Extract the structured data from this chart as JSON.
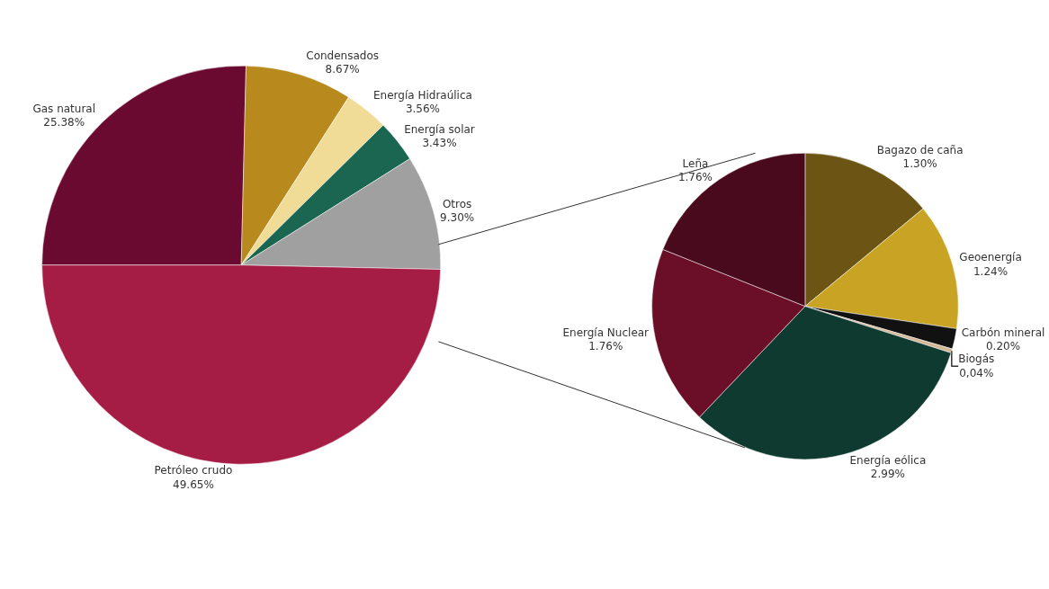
{
  "chart_data": [
    {
      "type": "pie",
      "categories": [
        "Gas natural",
        "Condensados",
        "Energía Hidraúlica",
        "Energía solar",
        "Otros",
        "Petróleo crudo"
      ],
      "values": [
        25.38,
        8.67,
        3.56,
        3.43,
        9.3,
        49.65
      ],
      "value_labels": [
        "25.38%",
        "8.67%",
        "3.56%",
        "3.43%",
        "9.30%",
        "49.65%"
      ],
      "colors": [
        "#6b0a30",
        "#b88a1e",
        "#f0dc96",
        "#1a6650",
        "#a0a0a0",
        "#a51c45"
      ]
    },
    {
      "type": "pie",
      "categories": [
        "Bagazo de caña",
        "Geoenergía",
        "Carbón mineral",
        "Biogás",
        "Energía eólica",
        "Energía Nuclear",
        "Leña"
      ],
      "values": [
        1.3,
        1.24,
        0.2,
        0.04,
        2.99,
        1.76,
        1.76
      ],
      "value_labels": [
        "1.30%",
        "1.24%",
        "0.20%",
        "0,04%",
        "2.99%",
        "1.76%",
        "1.76%"
      ],
      "colors": [
        "#6b5414",
        "#c9a424",
        "#111111",
        "#d4b896",
        "#0f3a30",
        "#6b0f28",
        "#4a0a1e"
      ]
    }
  ]
}
